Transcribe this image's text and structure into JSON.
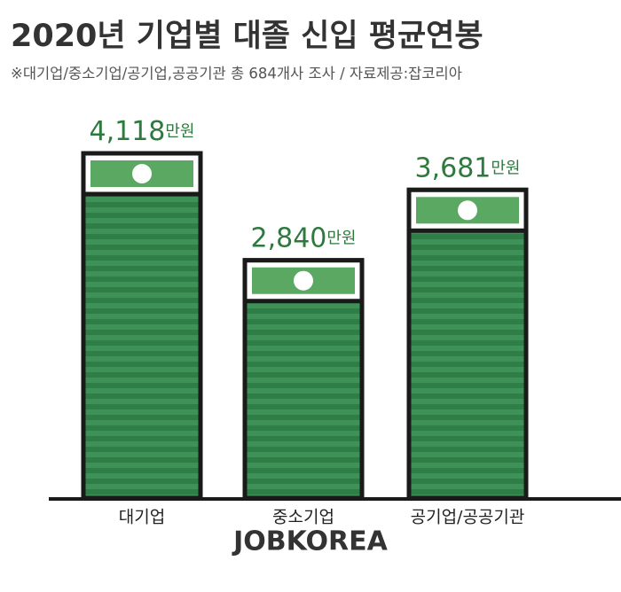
{
  "chart_data": {
    "type": "bar",
    "title": "2020년 기업별 대졸 신입 평균연봉",
    "subtitle": "※대기업/중소기업/공기업,공공기관 총 684개사 조사 / 자료제공:잡코리아",
    "categories": [
      "대기업",
      "중소기업",
      "공기업/공공기관"
    ],
    "values": [
      4118,
      2840,
      3681
    ],
    "value_labels": [
      "4,118",
      "2,840",
      "3,681"
    ],
    "unit": "만원",
    "color": "#2f7d47",
    "source": "JOBKOREA"
  }
}
